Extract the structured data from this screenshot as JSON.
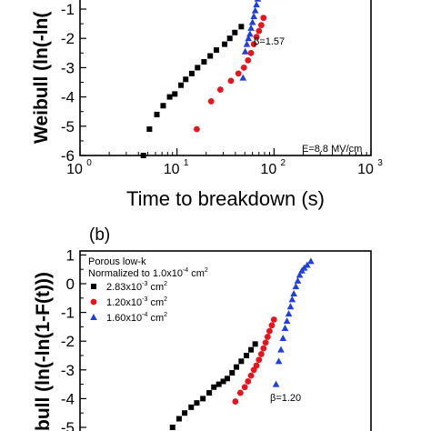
{
  "chart_data": [
    {
      "type": "scatter",
      "panel_label": "",
      "ylabel": "Weibull (ln(-ln(",
      "xlabel": "Time to breakdown (s)",
      "x_scale": "log",
      "xlim": [
        1,
        1000
      ],
      "ylim": [
        -6,
        0
      ],
      "x_ticks": [
        1,
        10,
        100,
        1000
      ],
      "x_tick_labels": [
        "10",
        "10",
        "10",
        "10"
      ],
      "x_tick_exponents": [
        "0",
        "1",
        "2",
        "3"
      ],
      "y_ticks": [
        -6,
        -5,
        -4,
        -3,
        -2,
        -1
      ],
      "y_tick_labels": [
        "-6",
        "-5",
        "-4",
        "-3",
        "-2",
        "-1"
      ],
      "annotations": [
        {
          "text": "β=1.57",
          "x": 85,
          "y": -2.35
        },
        {
          "text": "E=8.8 MV/cm",
          "x": 320,
          "y": -5.95
        }
      ],
      "series": [
        {
          "marker": "square",
          "color": "#000000",
          "x": [
            4.5,
            5.2,
            6.2,
            7.2,
            8.4,
            9.5,
            11.0,
            12.3,
            14.2,
            16.3,
            19.0,
            22.0,
            25.5,
            31.0,
            35.0,
            39.5,
            46.0
          ],
          "y": [
            -6.0,
            -5.1,
            -4.6,
            -4.3,
            -4.0,
            -3.9,
            -3.6,
            -3.4,
            -3.2,
            -3.0,
            -2.8,
            -2.6,
            -2.4,
            -2.2,
            -2.0,
            -1.8,
            -1.6
          ]
        },
        {
          "marker": "circle",
          "color": "#e8141c",
          "x": [
            16.0,
            22.5,
            28.0,
            36.0,
            43.0,
            49.0,
            54.0,
            58.0,
            62.0,
            66.0,
            70.0,
            74.0,
            78.0
          ],
          "y": [
            -5.1,
            -4.15,
            -3.75,
            -3.45,
            -3.2,
            -3.0,
            -2.75,
            -2.5,
            -2.2,
            -1.95,
            -1.75,
            -1.55,
            -1.3
          ]
        },
        {
          "marker": "triangle",
          "color": "#1f3fe0",
          "x": [
            48.0,
            50.5,
            52.5,
            54.5,
            56.5,
            58.0,
            60.0,
            62.0,
            64.0,
            66.0,
            68.0,
            70.0,
            72.0,
            74.0,
            76.0,
            79.0,
            81.0
          ],
          "y": [
            -3.35,
            -2.45,
            -2.2,
            -2.0,
            -1.85,
            -1.65,
            -1.45,
            -1.25,
            -1.05,
            -0.85,
            -0.65,
            -0.45,
            -0.3,
            -0.15,
            -0.05,
            0.0,
            0.0
          ]
        }
      ]
    },
    {
      "type": "scatter",
      "panel_label": "(b)",
      "ylabel": "bull (ln(-ln(1-F(t)))",
      "ylim": [
        -5,
        1
      ],
      "y_ticks": [
        -5,
        -4,
        -3,
        -2,
        -1,
        0,
        1
      ],
      "y_tick_labels": [
        "-5",
        "-4",
        "-3",
        "-2",
        "-1",
        "0",
        "1"
      ],
      "legend_title_line1": "Porous low-k",
      "legend_title_line2": "Normalized to 1.0x10",
      "legend_title_exp": "-4",
      "legend_title_unit": " cm",
      "legend_title_unit_exp": "2",
      "legend_entries": [
        {
          "label": "2.83x10",
          "exp": "-3",
          "unit": " cm",
          "unit_exp": "2",
          "marker": "square",
          "color": "#000000"
        },
        {
          "label": "1.20x10",
          "exp": "-3",
          "unit": " cm",
          "unit_exp": "2",
          "marker": "circle",
          "color": "#e8141c"
        },
        {
          "label": "1.60x10",
          "exp": "-4",
          "unit": " cm",
          "unit_exp": "2",
          "marker": "triangle",
          "color": "#1f3fe0"
        }
      ],
      "legend_position": "top-left",
      "annotations": [
        {
          "text": "β=1.20",
          "x": 85,
          "y": -4.4
        }
      ],
      "series": [
        {
          "marker": "square",
          "color": "#000000",
          "x": [
            9.0,
            10.5,
            12.0,
            14.0,
            16.0,
            18.5,
            21.5,
            24.0,
            27.0,
            30.0,
            33.0,
            37.0,
            41.0,
            46.0,
            52.0,
            58.0,
            64.0
          ],
          "y": [
            -5.0,
            -4.7,
            -4.5,
            -4.3,
            -4.15,
            -4.0,
            -3.8,
            -3.6,
            -3.5,
            -3.4,
            -3.3,
            -3.1,
            -2.9,
            -2.7,
            -2.5,
            -2.3,
            -2.1
          ]
        },
        {
          "marker": "circle",
          "color": "#e8141c",
          "x": [
            40.0,
            45.0,
            50.0,
            54.0,
            58.0,
            62.0,
            66.0,
            70.0,
            74.0,
            78.0,
            82.0,
            86.0,
            90.0,
            95.0,
            100.0
          ],
          "y": [
            -4.1,
            -3.8,
            -3.6,
            -3.4,
            -3.2,
            -3.0,
            -2.85,
            -2.65,
            -2.45,
            -2.25,
            -2.05,
            -1.85,
            -1.65,
            -1.45,
            -1.25
          ]
        },
        {
          "marker": "triangle",
          "color": "#1f3fe0",
          "x": [
            105,
            112,
            118,
            124,
            130,
            136,
            142,
            148,
            154,
            160,
            168,
            176,
            184,
            194,
            205,
            220,
            240
          ],
          "y": [
            -3.5,
            -2.7,
            -2.3,
            -1.9,
            -1.55,
            -1.3,
            -1.05,
            -0.8,
            -0.55,
            -0.35,
            -0.1,
            0.1,
            0.3,
            0.45,
            0.55,
            0.65,
            0.78
          ]
        }
      ]
    }
  ]
}
